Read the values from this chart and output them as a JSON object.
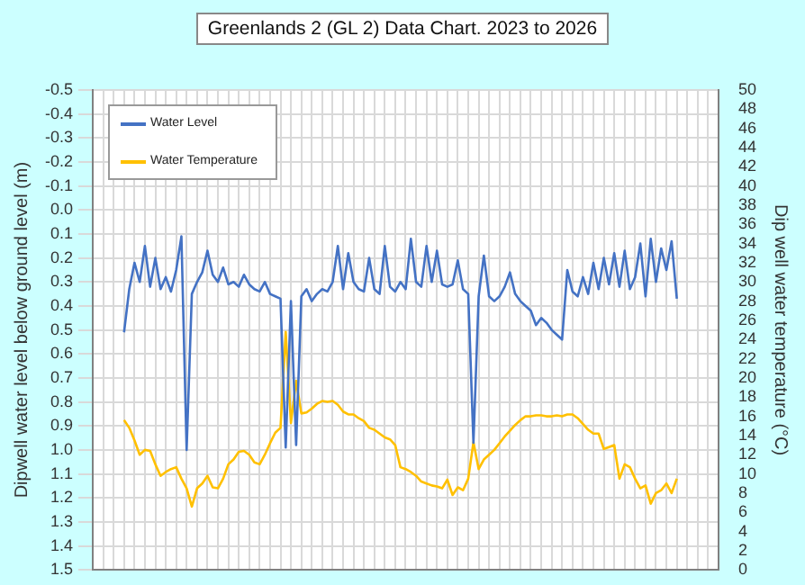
{
  "chart_data": {
    "type": "line",
    "title": "Greenlands 2 (GL 2) Data Chart. 2023 to 2026",
    "ylabel": "Dipwell water level below ground level (m)",
    "y2label": "Dip well water temperature (°C)",
    "categories": [
      null,
      null,
      null,
      null,
      null,
      null,
      null,
      null,
      null,
      null,
      null,
      null,
      null,
      null,
      null,
      null,
      null,
      null,
      null,
      null,
      null,
      null,
      null,
      null,
      null,
      null,
      null,
      null,
      null,
      null,
      null,
      null,
      null,
      null,
      null,
      null,
      null,
      null,
      null,
      null,
      null,
      null,
      null,
      null,
      null,
      null,
      null,
      null,
      null,
      null,
      null,
      null,
      null,
      null,
      null,
      null,
      null,
      null,
      null,
      null,
      null,
      null,
      null,
      null,
      null,
      null,
      null,
      null,
      null,
      null,
      null,
      null,
      null,
      null,
      null,
      null,
      null,
      null,
      null,
      null,
      null,
      null,
      null,
      null,
      null,
      null,
      null,
      null,
      null,
      null,
      null,
      null,
      null,
      null,
      null,
      null,
      null,
      null,
      null,
      null,
      null,
      null,
      null,
      null,
      null,
      null,
      null,
      null,
      null,
      null,
      null,
      null,
      null,
      null,
      null,
      null,
      null,
      null,
      null,
      null,
      null
    ],
    "series": [
      {
        "name": "Water Level",
        "color": "#4472c4",
        "values": [
          null,
          null,
          null,
          null,
          null,
          null,
          0.51,
          0.33,
          0.22,
          0.3,
          0.15,
          0.32,
          0.2,
          0.33,
          0.28,
          0.34,
          0.25,
          0.11,
          1.0,
          0.35,
          0.3,
          0.26,
          0.17,
          0.27,
          0.3,
          0.24,
          0.31,
          0.3,
          0.32,
          0.27,
          0.31,
          0.33,
          0.34,
          0.3,
          0.35,
          0.36,
          0.37,
          0.99,
          0.38,
          0.98,
          0.36,
          0.33,
          0.38,
          0.35,
          0.33,
          0.34,
          0.3,
          0.15,
          0.33,
          0.18,
          0.3,
          0.33,
          0.34,
          0.2,
          0.33,
          0.35,
          0.15,
          0.32,
          0.34,
          0.3,
          0.33,
          0.12,
          0.3,
          0.32,
          0.15,
          0.3,
          0.17,
          0.31,
          0.32,
          0.31,
          0.21,
          0.33,
          0.35,
          0.97,
          0.36,
          0.19,
          0.36,
          0.38,
          0.36,
          0.32,
          0.26,
          0.35,
          0.38,
          0.4,
          0.42,
          0.48,
          0.45,
          0.47,
          0.5,
          0.52,
          0.54,
          0.25,
          0.34,
          0.36,
          0.28,
          0.35,
          0.22,
          0.33,
          0.2,
          0.31,
          0.18,
          0.32,
          0.17,
          0.33,
          0.28,
          0.14,
          0.36,
          0.12,
          0.3,
          0.16,
          0.25,
          0.13,
          0.37,
          null,
          null,
          null,
          null,
          null,
          null,
          null,
          null
        ]
      },
      {
        "name": "Water Temperature",
        "color": "#ffc000",
        "axis": "y2",
        "values": [
          null,
          null,
          null,
          null,
          null,
          null,
          15.6,
          14.8,
          13.5,
          12,
          12.5,
          12.4,
          11,
          9.8,
          10.2,
          10.5,
          10.7,
          9.5,
          8.5,
          6.6,
          8.5,
          9,
          9.8,
          8.6,
          8.5,
          9.5,
          11,
          11.5,
          12.3,
          12.4,
          12,
          11.2,
          11,
          12,
          13.2,
          14.3,
          14.8,
          24.8,
          15.3,
          19.7,
          16.3,
          16.4,
          16.8,
          17.3,
          17.6,
          17.5,
          17.6,
          17.2,
          16.5,
          16.2,
          16.2,
          15.8,
          15.5,
          14.8,
          14.6,
          14.2,
          13.8,
          13.6,
          13,
          10.7,
          10.5,
          10.2,
          9.8,
          9.2,
          9,
          8.8,
          8.7,
          8.5,
          9.4,
          7.8,
          8.6,
          8.3,
          9.5,
          13.3,
          10.5,
          11.5,
          12,
          12.5,
          13.2,
          13.9,
          14.5,
          15.1,
          15.6,
          16,
          16,
          16.1,
          16.1,
          16,
          16,
          16.1,
          16,
          16.2,
          16.2,
          15.8,
          15.2,
          14.6,
          14.2,
          14.2,
          12.6,
          12.8,
          13,
          9.5,
          11,
          10.7,
          9.5,
          8.5,
          8.8,
          6.9,
          8,
          8.3,
          9,
          8,
          9.5,
          null,
          null,
          null,
          null,
          null,
          null,
          null,
          null
        ]
      }
    ],
    "ylim": [
      1.5,
      -0.5
    ],
    "yticks": [
      -0.5,
      -0.4,
      -0.3,
      -0.2,
      -0.1,
      {
        "value": 0,
        "label": "0.0"
      },
      0.1,
      0.2,
      0.3,
      0.4,
      0.5,
      0.6,
      0.7,
      0.8,
      0.9,
      {
        "value": 1,
        "label": "1.0"
      },
      1.1,
      1.2,
      1.3,
      1.4,
      1.5
    ],
    "y2lim": [
      0,
      50
    ],
    "y2ticks": [
      0,
      2,
      4,
      6,
      8,
      10,
      12,
      14,
      16,
      18,
      20,
      22,
      24,
      26,
      28,
      30,
      32,
      34,
      36,
      38,
      40,
      42,
      44,
      46,
      48,
      50
    ],
    "grid": true,
    "legend": "top left",
    "marker": "none",
    "line_style": "solid"
  }
}
